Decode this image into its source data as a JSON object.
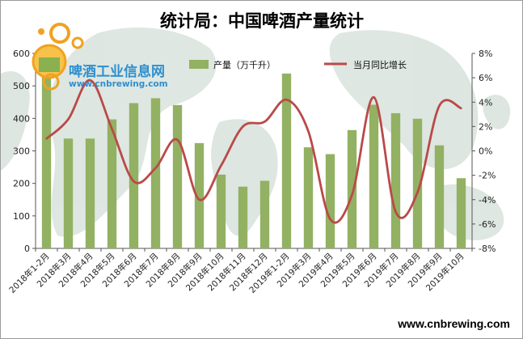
{
  "chart_data": {
    "type": "bar+line",
    "title": "统计局：中国啤酒产量统计",
    "categories": [
      "2018年1-2月",
      "2018年3月",
      "2018年4月",
      "2018年5月",
      "2018年6月",
      "2018年7月",
      "2018年8月",
      "2018年9月",
      "2018年10月",
      "2018年11月",
      "2018年12月",
      "2019年1-2月",
      "2019年3月",
      "2019年4月",
      "2019年5月",
      "2019年6月",
      "2019年7月",
      "2019年8月",
      "2019年9月",
      "2019年10月"
    ],
    "series": [
      {
        "name": "产量（万千升）",
        "type": "bar",
        "axis": "left",
        "color": "#93b162",
        "values": [
          555,
          338,
          338,
          397,
          447,
          462,
          441,
          324,
          227,
          190,
          208,
          538,
          311,
          290,
          364,
          442,
          416,
          399,
          317,
          216
        ]
      },
      {
        "name": "当月同比增长",
        "type": "line",
        "axis": "right",
        "color": "#b94a48",
        "values": [
          1.0,
          2.6,
          5.8,
          1.8,
          -2.5,
          -1.4,
          0.9,
          -4.0,
          -1.2,
          2.0,
          2.4,
          4.2,
          1.6,
          -5.6,
          -3.6,
          4.4,
          -5.0,
          -3.4,
          3.7,
          3.5
        ]
      }
    ],
    "ylim_left": [
      0,
      600
    ],
    "yticks_left": [
      "0",
      "100",
      "200",
      "300",
      "400",
      "500",
      "600"
    ],
    "ylim_right": [
      -8,
      8
    ],
    "yticks_right": [
      "-8%",
      "-6%",
      "-4%",
      "-2%",
      "0%",
      "2%",
      "4%",
      "6%",
      "8%"
    ],
    "grid": false,
    "legend_position": "top"
  },
  "logo": {
    "name_cn": "啤酒工业信息网",
    "url": "www.cnbrewing.com"
  },
  "footer": {
    "url": "www.cnbrewing.com"
  },
  "colors": {
    "bar": "#93b162",
    "line": "#b94a48",
    "map_land": "#bfcfc4",
    "logo_orange": "#f0a21f",
    "logo_blue": "#2f8fcf"
  }
}
